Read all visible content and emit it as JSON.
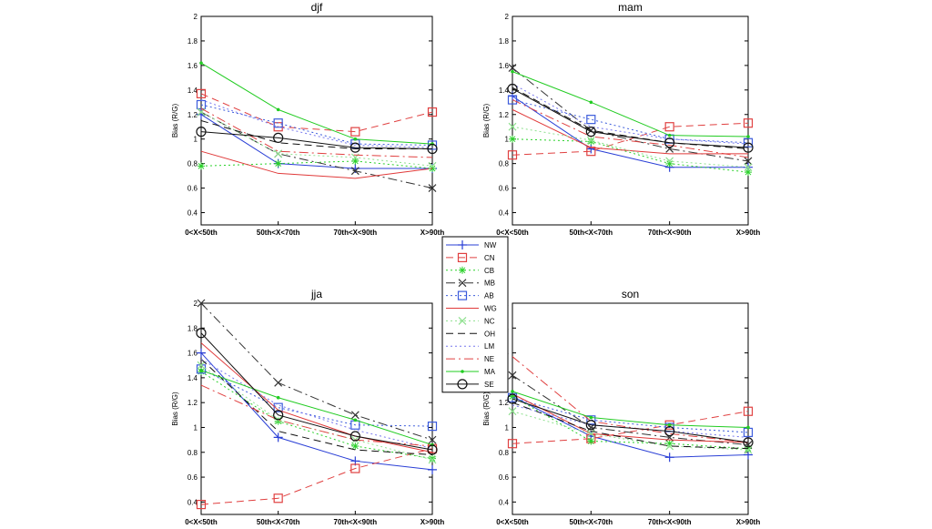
{
  "figure": {
    "ylabel": "Bias (R/G)",
    "legend_placement": "center"
  },
  "series_styles": [
    {
      "name": "NW",
      "color": "#2a3fd6",
      "dash": "",
      "marker": "plus"
    },
    {
      "name": "CN",
      "color": "#e04040",
      "dash": "8,5",
      "marker": "square"
    },
    {
      "name": "CB",
      "color": "#2ad12a",
      "dash": "2,3",
      "marker": "star"
    },
    {
      "name": "MB",
      "color": "#333333",
      "dash": "10,4,2,4",
      "marker": "x"
    },
    {
      "name": "AB",
      "color": "#3b5bdb",
      "dash": "2,3",
      "marker": "square"
    },
    {
      "name": "WG",
      "color": "#e03a3a",
      "dash": "",
      "marker": "none"
    },
    {
      "name": "NC",
      "color": "#8ee08e",
      "dash": "2,3",
      "marker": "x"
    },
    {
      "name": "OH",
      "color": "#111111",
      "dash": "8,5",
      "marker": "none"
    },
    {
      "name": "LM",
      "color": "#7777ee",
      "dash": "2,3",
      "marker": "none"
    },
    {
      "name": "NE",
      "color": "#e04040",
      "dash": "10,4,2,4",
      "marker": "none"
    },
    {
      "name": "MA",
      "color": "#22cc22",
      "dash": "",
      "marker": "dot"
    },
    {
      "name": "SE",
      "color": "#111111",
      "dash": "",
      "marker": "circle"
    }
  ],
  "chart_data": [
    {
      "type": "line",
      "title": "djf",
      "categories": [
        "0<X<50th",
        "50th<X<70th",
        "70th<X<90th",
        "X>90th"
      ],
      "ylabel": "Bias (R/G)",
      "ylim": [
        0.3,
        2
      ],
      "yticks": [
        "0.4",
        "0.6",
        "0.8",
        "1",
        "1.2",
        "1.4",
        "1.6",
        "1.8",
        "2"
      ],
      "grid": false,
      "series": [
        {
          "name": "NW",
          "values": [
            1.2,
            0.8,
            0.76,
            0.76
          ]
        },
        {
          "name": "CN",
          "values": [
            1.37,
            1.1,
            1.06,
            1.22
          ]
        },
        {
          "name": "CB",
          "values": [
            0.78,
            0.8,
            0.82,
            0.76
          ]
        },
        {
          "name": "MB",
          "values": [
            1.22,
            0.88,
            0.74,
            0.6
          ]
        },
        {
          "name": "AB",
          "values": [
            1.28,
            1.13,
            0.96,
            0.95
          ]
        },
        {
          "name": "WG",
          "values": [
            0.9,
            0.72,
            0.68,
            0.76
          ]
        },
        {
          "name": "NC",
          "values": [
            1.22,
            0.88,
            0.85,
            0.78
          ]
        },
        {
          "name": "OH",
          "values": [
            1.15,
            0.97,
            0.92,
            0.92
          ]
        },
        {
          "name": "LM",
          "values": [
            1.32,
            1.1,
            0.95,
            0.93
          ]
        },
        {
          "name": "NE",
          "values": [
            1.25,
            0.9,
            0.87,
            0.85
          ]
        },
        {
          "name": "MA",
          "values": [
            1.62,
            1.24,
            1.0,
            0.96
          ]
        },
        {
          "name": "SE",
          "values": [
            1.06,
            1.01,
            0.93,
            0.92
          ]
        }
      ]
    },
    {
      "type": "line",
      "title": "mam",
      "categories": [
        "0<X<50th",
        "50th<X<70th",
        "70th<X<90th",
        "X>90th"
      ],
      "ylabel": "Bias (R/G)",
      "ylim": [
        0.3,
        2
      ],
      "yticks": [
        "0.4",
        "0.6",
        "0.8",
        "1",
        "1.2",
        "1.4",
        "1.6",
        "1.8",
        "2"
      ],
      "grid": false,
      "series": [
        {
          "name": "NW",
          "values": [
            1.35,
            0.92,
            0.77,
            0.77
          ]
        },
        {
          "name": "CN",
          "values": [
            0.87,
            0.9,
            1.1,
            1.13
          ]
        },
        {
          "name": "CB",
          "values": [
            1.0,
            0.98,
            0.8,
            0.73
          ]
        },
        {
          "name": "MB",
          "values": [
            1.58,
            1.07,
            0.92,
            0.82
          ]
        },
        {
          "name": "AB",
          "values": [
            1.32,
            1.16,
            1.0,
            0.97
          ]
        },
        {
          "name": "WG",
          "values": [
            1.24,
            0.93,
            0.88,
            0.88
          ]
        },
        {
          "name": "NC",
          "values": [
            1.1,
            0.99,
            0.82,
            0.77
          ]
        },
        {
          "name": "OH",
          "values": [
            1.42,
            1.07,
            0.97,
            0.92
          ]
        },
        {
          "name": "LM",
          "values": [
            1.45,
            1.1,
            1.0,
            0.96
          ]
        },
        {
          "name": "NE",
          "values": [
            1.32,
            1.02,
            0.95,
            0.85
          ]
        },
        {
          "name": "MA",
          "values": [
            1.55,
            1.3,
            1.03,
            1.02
          ]
        },
        {
          "name": "SE",
          "values": [
            1.41,
            1.06,
            0.97,
            0.93
          ]
        }
      ]
    },
    {
      "type": "line",
      "title": "jja",
      "categories": [
        "0<X<50th",
        "50th<X<70th",
        "70th<X<90th",
        "X>90th"
      ],
      "ylabel": "Bias (R/G)",
      "ylim": [
        0.3,
        2
      ],
      "yticks": [
        "0.4",
        "0.6",
        "0.8",
        "1",
        "1.2",
        "1.4",
        "1.6",
        "1.8",
        "2"
      ],
      "grid": false,
      "series": [
        {
          "name": "NW",
          "values": [
            1.6,
            0.92,
            0.73,
            0.66
          ]
        },
        {
          "name": "CN",
          "values": [
            0.38,
            0.43,
            0.67,
            0.83
          ]
        },
        {
          "name": "CB",
          "values": [
            1.45,
            1.05,
            0.85,
            0.75
          ]
        },
        {
          "name": "MB",
          "values": [
            2.0,
            1.36,
            1.1,
            0.9
          ]
        },
        {
          "name": "AB",
          "values": [
            1.47,
            1.16,
            1.02,
            1.01
          ]
        },
        {
          "name": "WG",
          "values": [
            1.68,
            1.14,
            0.93,
            0.8
          ]
        },
        {
          "name": "NC",
          "values": [
            1.5,
            1.06,
            0.9,
            0.74
          ]
        },
        {
          "name": "OH",
          "values": [
            1.55,
            0.97,
            0.82,
            0.78
          ]
        },
        {
          "name": "LM",
          "values": [
            1.55,
            1.18,
            0.98,
            0.83
          ]
        },
        {
          "name": "NE",
          "values": [
            1.34,
            1.06,
            0.9,
            0.85
          ]
        },
        {
          "name": "MA",
          "values": [
            1.46,
            1.24,
            1.06,
            0.86
          ]
        },
        {
          "name": "SE",
          "values": [
            1.76,
            1.1,
            0.93,
            0.82
          ]
        }
      ]
    },
    {
      "type": "line",
      "title": "son",
      "categories": [
        "0<X<50th",
        "50th<X<70th",
        "70th<X<90th",
        "X>90th"
      ],
      "ylabel": "Bias (R/G)",
      "ylim": [
        0.3,
        2
      ],
      "yticks": [
        "0.4",
        "0.6",
        "0.8",
        "1",
        "1.2",
        "1.4",
        "1.6",
        "1.8",
        "2"
      ],
      "grid": false,
      "series": [
        {
          "name": "NW",
          "values": [
            1.25,
            0.93,
            0.76,
            0.78
          ]
        },
        {
          "name": "CN",
          "values": [
            0.87,
            0.91,
            1.02,
            1.13
          ]
        },
        {
          "name": "CB",
          "values": [
            1.25,
            0.89,
            0.87,
            0.83
          ]
        },
        {
          "name": "MB",
          "values": [
            1.42,
            1.0,
            0.92,
            0.86
          ]
        },
        {
          "name": "AB",
          "values": [
            1.24,
            1.06,
            1.0,
            0.96
          ]
        },
        {
          "name": "WG",
          "values": [
            1.27,
            0.95,
            0.9,
            0.88
          ]
        },
        {
          "name": "NC",
          "values": [
            1.13,
            0.95,
            0.85,
            0.82
          ]
        },
        {
          "name": "OH",
          "values": [
            1.2,
            0.97,
            0.85,
            0.83
          ]
        },
        {
          "name": "LM",
          "values": [
            1.18,
            1.02,
            0.97,
            0.92
          ]
        },
        {
          "name": "NE",
          "values": [
            1.57,
            1.05,
            0.95,
            0.88
          ]
        },
        {
          "name": "MA",
          "values": [
            1.29,
            1.08,
            1.02,
            1.0
          ]
        },
        {
          "name": "SE",
          "values": [
            1.23,
            1.02,
            0.97,
            0.88
          ]
        }
      ]
    }
  ]
}
